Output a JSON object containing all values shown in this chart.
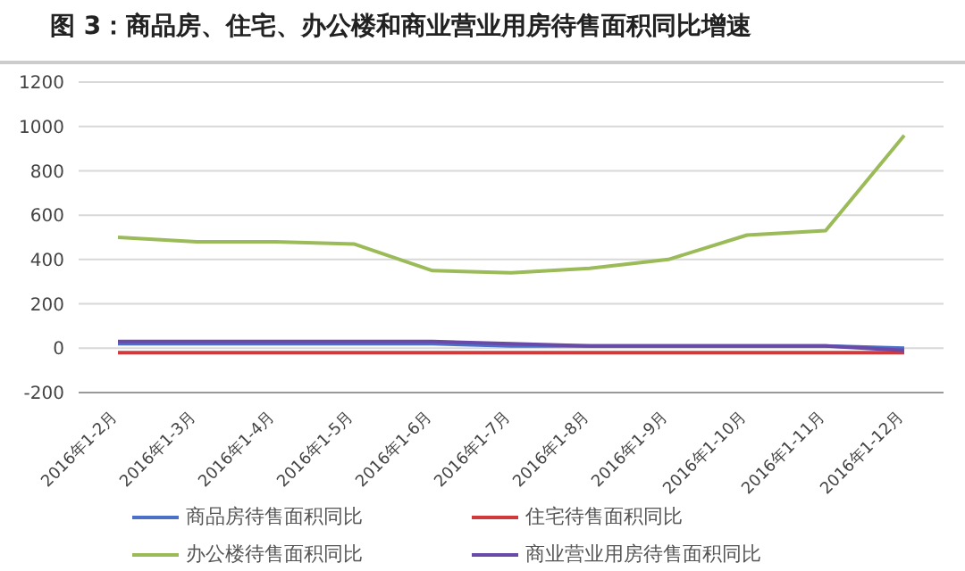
{
  "chart_data": {
    "type": "line",
    "title": "图 3：商品房、住宅、办公楼和商业营业用房待售面积同比增速",
    "categories": [
      "2016年1-2月",
      "2016年1-3月",
      "2016年1-4月",
      "2016年1-5月",
      "2016年1-6月",
      "2016年1-7月",
      "2016年1-8月",
      "2016年1-9月",
      "2016年1-10月",
      "2016年1-11月",
      "2016年1-12月"
    ],
    "series": [
      {
        "name": "商品房待售面积同比",
        "color": "#4a70c8",
        "values": [
          20,
          20,
          20,
          20,
          20,
          10,
          10,
          10,
          10,
          10,
          0
        ]
      },
      {
        "name": "住宅待售面积同比",
        "color": "#d03a3a",
        "values": [
          -20,
          -20,
          -20,
          -20,
          -20,
          -20,
          -20,
          -20,
          -20,
          -20,
          -20
        ]
      },
      {
        "name": "办公楼待售面积同比",
        "color": "#9bbb59",
        "values": [
          500,
          480,
          480,
          470,
          350,
          340,
          360,
          400,
          510,
          530,
          960
        ]
      },
      {
        "name": "商业营业用房待售面积同比",
        "color": "#6a4aa8",
        "values": [
          30,
          30,
          30,
          30,
          30,
          20,
          10,
          10,
          10,
          10,
          -10
        ]
      }
    ],
    "ylim": [
      -200,
      1200
    ],
    "yticks": [
      -200,
      0,
      200,
      400,
      600,
      800,
      1000,
      1200
    ],
    "grid": "y",
    "legend": "bottom"
  }
}
